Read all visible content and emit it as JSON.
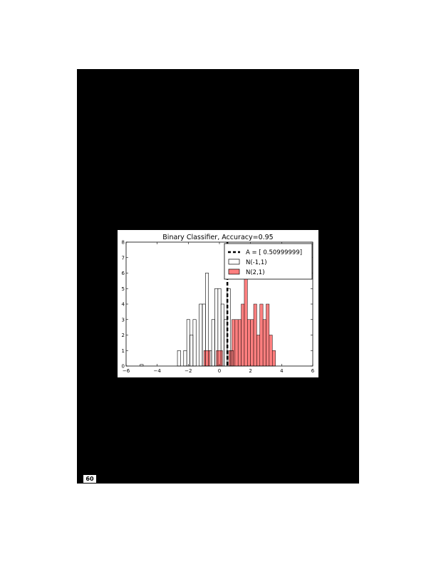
{
  "page": {
    "number": "60"
  },
  "chart_data": {
    "type": "bar",
    "title": "Binary Classifier, Accuracy=0.95",
    "xlabel": "",
    "ylabel": "",
    "xlim": [
      -6,
      6
    ],
    "ylim": [
      0,
      8
    ],
    "xticks": [
      "−6",
      "−4",
      "−2",
      "0",
      "2",
      "4",
      "6"
    ],
    "yticks": [
      "0",
      "1",
      "2",
      "3",
      "4",
      "5",
      "6",
      "7",
      "8"
    ],
    "grid": false,
    "legend_position": "top-right",
    "threshold": {
      "label": "A = [ 0.50999999]",
      "x": 0.51
    },
    "series": [
      {
        "name": "N(-1,1)",
        "style": "outline",
        "color": "#000000",
        "bins": [
          {
            "x0": -5.1,
            "x1": -4.9,
            "count": 0.1
          },
          {
            "x0": -2.7,
            "x1": -2.5,
            "count": 1
          },
          {
            "x0": -2.5,
            "x1": -2.3,
            "count": 0
          },
          {
            "x0": -2.3,
            "x1": -2.1,
            "count": 1
          },
          {
            "x0": -2.1,
            "x1": -1.9,
            "count": 3
          },
          {
            "x0": -1.9,
            "x1": -1.7,
            "count": 2
          },
          {
            "x0": -1.7,
            "x1": -1.5,
            "count": 3
          },
          {
            "x0": -1.5,
            "x1": -1.3,
            "count": 0
          },
          {
            "x0": -1.3,
            "x1": -1.1,
            "count": 4
          },
          {
            "x0": -1.1,
            "x1": -0.9,
            "count": 4
          },
          {
            "x0": -0.9,
            "x1": -0.7,
            "count": 6
          },
          {
            "x0": -0.7,
            "x1": -0.5,
            "count": 1
          },
          {
            "x0": -0.5,
            "x1": -0.3,
            "count": 3
          },
          {
            "x0": -0.3,
            "x1": -0.1,
            "count": 5
          },
          {
            "x0": -0.1,
            "x1": 0.1,
            "count": 5
          },
          {
            "x0": 0.1,
            "x1": 0.3,
            "count": 4
          },
          {
            "x0": 0.3,
            "x1": 0.5,
            "count": 3
          },
          {
            "x0": 0.5,
            "x1": 0.7,
            "count": 5
          },
          {
            "x0": 0.7,
            "x1": 0.9,
            "count": 1
          }
        ]
      },
      {
        "name": "N(2,1)",
        "style": "filled",
        "color": "#ff7f7f",
        "bins": [
          {
            "x0": -1.0,
            "x1": -0.6,
            "count": 1
          },
          {
            "x0": -0.2,
            "x1": 0.2,
            "count": 1
          },
          {
            "x0": 0.6,
            "x1": 0.8,
            "count": 1
          },
          {
            "x0": 0.8,
            "x1": 1.0,
            "count": 3
          },
          {
            "x0": 1.0,
            "x1": 1.2,
            "count": 3
          },
          {
            "x0": 1.2,
            "x1": 1.4,
            "count": 3
          },
          {
            "x0": 1.4,
            "x1": 1.6,
            "count": 4
          },
          {
            "x0": 1.6,
            "x1": 1.8,
            "count": 6
          },
          {
            "x0": 1.8,
            "x1": 2.0,
            "count": 3
          },
          {
            "x0": 2.0,
            "x1": 2.2,
            "count": 3
          },
          {
            "x0": 2.2,
            "x1": 2.4,
            "count": 4
          },
          {
            "x0": 2.4,
            "x1": 2.6,
            "count": 2
          },
          {
            "x0": 2.6,
            "x1": 2.8,
            "count": 4
          },
          {
            "x0": 2.8,
            "x1": 3.0,
            "count": 3
          },
          {
            "x0": 3.0,
            "x1": 3.2,
            "count": 4
          },
          {
            "x0": 3.2,
            "x1": 3.4,
            "count": 2
          },
          {
            "x0": 3.4,
            "x1": 3.6,
            "count": 1
          }
        ]
      }
    ]
  }
}
